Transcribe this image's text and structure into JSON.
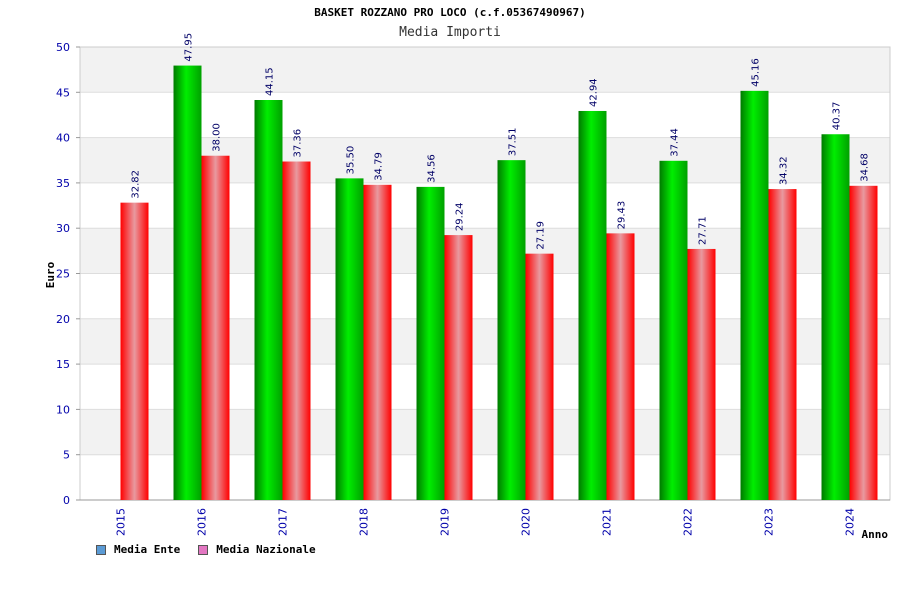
{
  "title": "BASKET ROZZANO PRO LOCO (c.f.05367490967)",
  "subtitle": "Media Importi",
  "legend": {
    "items": [
      {
        "label": "Media Ente",
        "color": "#5b9bd5"
      },
      {
        "label": "Media Nazionale",
        "color": "#e377c2"
      }
    ]
  },
  "colors": {
    "series_ente": "#00c000",
    "series_nazionale": "#ff0000",
    "axis_text": "#0000aa",
    "band": "#f2f2f2"
  },
  "chart_data": {
    "type": "bar",
    "title": "BASKET ROZZANO PRO LOCO (c.f.05367490967)",
    "subtitle": "Media Importi",
    "xlabel": "Anno",
    "ylabel": "Euro",
    "ylim": [
      0,
      50
    ],
    "yticks": [
      "0",
      "5",
      "10",
      "15",
      "20",
      "25",
      "30",
      "35",
      "40",
      "45",
      "50"
    ],
    "categories": [
      "2015",
      "2016",
      "2017",
      "2018",
      "2019",
      "2020",
      "2021",
      "2022",
      "2023",
      "2024"
    ],
    "series": [
      {
        "name": "Media Ente",
        "values": [
          null,
          47.95,
          44.15,
          35.5,
          34.56,
          37.51,
          42.94,
          37.44,
          45.16,
          40.37
        ]
      },
      {
        "name": "Media Nazionale",
        "values": [
          32.82,
          38.0,
          37.36,
          34.79,
          29.24,
          27.19,
          29.43,
          27.71,
          34.32,
          34.68
        ]
      }
    ],
    "data_labels": [
      [
        null,
        "47.95",
        "44.15",
        "35.50",
        "34.56",
        "37.51",
        "42.94",
        "37.44",
        "45.16",
        "40.37"
      ],
      [
        "32.82",
        "38.00",
        "37.36",
        "34.79",
        "29.24",
        "27.19",
        "29.43",
        "27.71",
        "34.32",
        "34.68"
      ]
    ],
    "grid": true,
    "legend_position": "bottom-left"
  }
}
